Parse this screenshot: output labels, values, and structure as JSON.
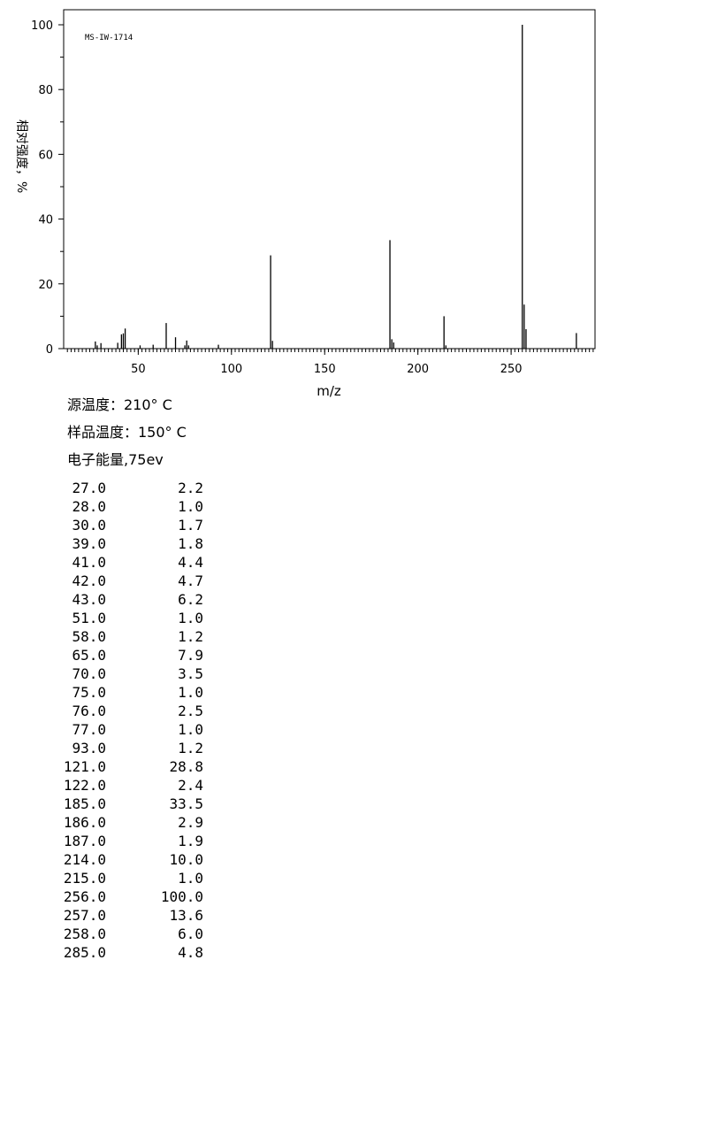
{
  "chart_data": {
    "type": "bar",
    "id_label": "MS-IW-1714",
    "xlabel": "m/z",
    "ylabel": "相对强度，%",
    "xlim": [
      10,
      295
    ],
    "ylim": [
      0,
      100
    ],
    "x_ticks": [
      "50",
      "100",
      "150",
      "200",
      "250"
    ],
    "y_ticks": [
      "0",
      "20",
      "40",
      "60",
      "80",
      "100"
    ],
    "x": [
      27,
      28,
      30,
      39,
      41,
      42,
      43,
      51,
      58,
      65,
      70,
      75,
      76,
      77,
      93,
      121,
      122,
      185,
      186,
      187,
      214,
      215,
      256,
      257,
      258,
      285
    ],
    "values": [
      2.2,
      1.0,
      1.7,
      1.8,
      4.4,
      4.7,
      6.2,
      1.0,
      1.2,
      7.9,
      3.5,
      1.0,
      2.5,
      1.0,
      1.2,
      28.8,
      2.4,
      33.5,
      2.9,
      1.9,
      10.0,
      1.0,
      100.0,
      13.6,
      6.0,
      4.8
    ]
  },
  "conditions": {
    "source_temp": "源温度：210° C",
    "sample_temp": "样品温度：150° C",
    "electron_energy": "电子能量,75ev"
  },
  "peaks": [
    {
      "mz": "27.0",
      "abundance": "2.2"
    },
    {
      "mz": "28.0",
      "abundance": "1.0"
    },
    {
      "mz": "30.0",
      "abundance": "1.7"
    },
    {
      "mz": "39.0",
      "abundance": "1.8"
    },
    {
      "mz": "41.0",
      "abundance": "4.4"
    },
    {
      "mz": "42.0",
      "abundance": "4.7"
    },
    {
      "mz": "43.0",
      "abundance": "6.2"
    },
    {
      "mz": "51.0",
      "abundance": "1.0"
    },
    {
      "mz": "58.0",
      "abundance": "1.2"
    },
    {
      "mz": "65.0",
      "abundance": "7.9"
    },
    {
      "mz": "70.0",
      "abundance": "3.5"
    },
    {
      "mz": "75.0",
      "abundance": "1.0"
    },
    {
      "mz": "76.0",
      "abundance": "2.5"
    },
    {
      "mz": "77.0",
      "abundance": "1.0"
    },
    {
      "mz": "93.0",
      "abundance": "1.2"
    },
    {
      "mz": "121.0",
      "abundance": "28.8"
    },
    {
      "mz": "122.0",
      "abundance": "2.4"
    },
    {
      "mz": "185.0",
      "abundance": "33.5"
    },
    {
      "mz": "186.0",
      "abundance": "2.9"
    },
    {
      "mz": "187.0",
      "abundance": "1.9"
    },
    {
      "mz": "214.0",
      "abundance": "10.0"
    },
    {
      "mz": "215.0",
      "abundance": "1.0"
    },
    {
      "mz": "256.0",
      "abundance": "100.0"
    },
    {
      "mz": "257.0",
      "abundance": "13.6"
    },
    {
      "mz": "258.0",
      "abundance": "6.0"
    },
    {
      "mz": "285.0",
      "abundance": "4.8"
    }
  ]
}
